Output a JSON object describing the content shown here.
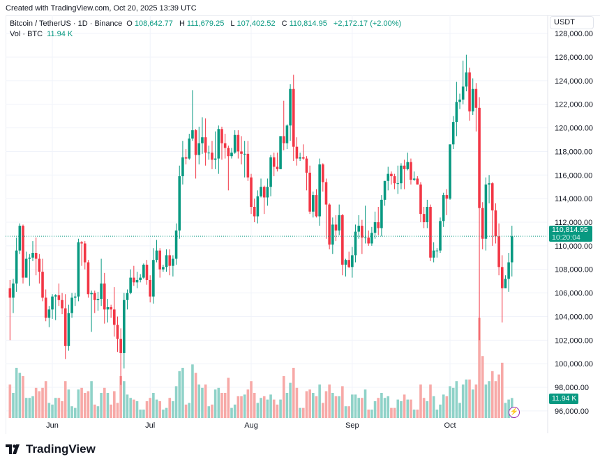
{
  "created_text": "Created with TradingView.com, Oct 20, 2025 13:39 UTC",
  "legend": {
    "symbol": "Bitcoin / TetherUS · 1D · Binance",
    "o_label": "O",
    "o": "108,642.77",
    "h_label": "H",
    "h": "111,679.25",
    "l_label": "L",
    "l": "107,402.52",
    "c_label": "C",
    "c": "110,814.95",
    "change": "+2,172.17 (+2.00%)",
    "vol_label": "Vol · BTC",
    "vol_value": "11.94 K"
  },
  "currency": "USDT",
  "last_price_label": "110,814.95",
  "countdown": "10:20:04",
  "last_volume_label": "11.94 K",
  "footer_brand": "TradingView",
  "colors": {
    "up": "#089981",
    "down": "#F23645",
    "up_vol": "#8fd2c8",
    "down_vol": "#f7a9a7",
    "grid": "#f0f3fa"
  },
  "icons": {
    "replay": "lightning-icon",
    "logo": "tradingview-logo"
  },
  "chart_data": {
    "type": "candlestick",
    "title": "Bitcoin / TetherUS · 1D · Binance",
    "ylabel": "USDT",
    "ylim": [
      95000,
      129000
    ],
    "y_ticks": [
      "96,000.00",
      "98,000.00",
      "100,000.00",
      "102,000.00",
      "104,000.00",
      "106,000.00",
      "108,000.00",
      "110,000.00",
      "112,000.00",
      "114,000.00",
      "116,000.00",
      "118,000.00",
      "120,000.00",
      "122,000.00",
      "124,000.00",
      "126,000.00",
      "128,000.00"
    ],
    "y_tick_values": [
      96000,
      98000,
      100000,
      102000,
      104000,
      106000,
      108000,
      110000,
      112000,
      114000,
      116000,
      118000,
      120000,
      122000,
      124000,
      126000,
      128000
    ],
    "x_ticks": [
      {
        "label": "Jun",
        "date": "2025-06-01"
      },
      {
        "label": "Jul",
        "date": "2025-07-01"
      },
      {
        "label": "Aug",
        "date": "2025-08-01"
      },
      {
        "label": "Sep",
        "date": "2025-09-01"
      },
      {
        "label": "Oct",
        "date": "2025-10-01"
      }
    ],
    "grid": true,
    "last_price": 110814.95,
    "columns": [
      "date",
      "open_k",
      "high_k",
      "low_k",
      "close_k",
      "volume_k_btc"
    ],
    "candles": [
      [
        "2025-05-19",
        106.4,
        107.1,
        102.0,
        105.6,
        20
      ],
      [
        "2025-05-20",
        105.6,
        107.2,
        104.3,
        106.8,
        15
      ],
      [
        "2025-05-21",
        106.8,
        110.7,
        106.1,
        109.6,
        30
      ],
      [
        "2025-05-22",
        109.6,
        111.9,
        109.3,
        111.7,
        27
      ],
      [
        "2025-05-23",
        111.7,
        111.8,
        106.8,
        107.3,
        25
      ],
      [
        "2025-05-24",
        107.3,
        109.5,
        107.3,
        108.9,
        12
      ],
      [
        "2025-05-25",
        108.9,
        109.3,
        106.6,
        109.0,
        12
      ],
      [
        "2025-05-26",
        109.0,
        110.4,
        108.7,
        109.4,
        13
      ],
      [
        "2025-05-27",
        109.4,
        110.7,
        107.5,
        108.9,
        18
      ],
      [
        "2025-05-28",
        108.9,
        109.3,
        106.8,
        107.8,
        16
      ],
      [
        "2025-05-29",
        107.8,
        108.9,
        105.3,
        105.6,
        18
      ],
      [
        "2025-05-30",
        105.6,
        106.3,
        103.6,
        103.9,
        22
      ],
      [
        "2025-05-31",
        103.9,
        104.9,
        103.1,
        104.6,
        9
      ],
      [
        "2025-06-01",
        104.6,
        105.9,
        103.8,
        105.7,
        8
      ],
      [
        "2025-06-02",
        105.7,
        105.9,
        103.7,
        105.8,
        12
      ],
      [
        "2025-06-03",
        105.8,
        106.8,
        104.9,
        105.4,
        12
      ],
      [
        "2025-06-04",
        105.4,
        106.0,
        104.2,
        104.7,
        10
      ],
      [
        "2025-06-05",
        104.7,
        105.9,
        100.4,
        101.5,
        22
      ],
      [
        "2025-06-06",
        101.5,
        105.0,
        101.1,
        104.3,
        17
      ],
      [
        "2025-06-07",
        104.3,
        106.0,
        103.9,
        105.6,
        7
      ],
      [
        "2025-06-08",
        105.6,
        106.0,
        104.9,
        105.7,
        6
      ],
      [
        "2025-06-09",
        105.7,
        110.6,
        105.3,
        110.3,
        17
      ],
      [
        "2025-06-10",
        110.3,
        110.4,
        108.3,
        110.2,
        18
      ],
      [
        "2025-06-11",
        110.2,
        110.4,
        108.0,
        108.6,
        15
      ],
      [
        "2025-06-12",
        108.6,
        108.8,
        105.6,
        105.9,
        16
      ],
      [
        "2025-06-13",
        105.9,
        106.2,
        102.7,
        106.0,
        22
      ],
      [
        "2025-06-14",
        106.0,
        106.2,
        104.3,
        105.4,
        8
      ],
      [
        "2025-06-15",
        105.4,
        106.1,
        104.5,
        105.5,
        7
      ],
      [
        "2025-06-16",
        105.5,
        108.9,
        104.9,
        106.8,
        15
      ],
      [
        "2025-06-17",
        106.8,
        107.7,
        103.4,
        104.6,
        18
      ],
      [
        "2025-06-18",
        104.6,
        105.5,
        103.5,
        104.8,
        15
      ],
      [
        "2025-06-19",
        104.8,
        105.0,
        103.9,
        104.6,
        8
      ],
      [
        "2025-06-20",
        104.6,
        106.5,
        102.3,
        103.3,
        16
      ],
      [
        "2025-06-21",
        103.3,
        104.0,
        101.0,
        102.1,
        9
      ],
      [
        "2025-06-22",
        102.1,
        103.0,
        98.2,
        100.9,
        25
      ],
      [
        "2025-06-23",
        100.9,
        106.0,
        99.6,
        105.4,
        22
      ],
      [
        "2025-06-24",
        105.4,
        106.3,
        104.6,
        106.0,
        14
      ],
      [
        "2025-06-25",
        106.0,
        108.0,
        105.9,
        107.3,
        12
      ],
      [
        "2025-06-26",
        107.3,
        108.3,
        106.6,
        106.9,
        11
      ],
      [
        "2025-06-27",
        106.9,
        107.8,
        106.4,
        107.1,
        10
      ],
      [
        "2025-06-28",
        107.1,
        107.6,
        106.9,
        107.3,
        5
      ],
      [
        "2025-06-29",
        107.3,
        108.5,
        107.2,
        108.4,
        5
      ],
      [
        "2025-06-30",
        108.4,
        108.8,
        106.7,
        107.1,
        10
      ],
      [
        "2025-07-01",
        107.1,
        107.5,
        105.2,
        105.7,
        12
      ],
      [
        "2025-07-02",
        105.7,
        109.8,
        105.1,
        108.8,
        15
      ],
      [
        "2025-07-03",
        108.8,
        110.5,
        108.6,
        109.6,
        11
      ],
      [
        "2025-07-04",
        109.6,
        109.8,
        107.3,
        108.0,
        10
      ],
      [
        "2025-07-05",
        108.0,
        108.4,
        107.8,
        108.2,
        5
      ],
      [
        "2025-07-06",
        108.2,
        109.7,
        107.8,
        109.2,
        6
      ],
      [
        "2025-07-07",
        109.2,
        109.7,
        107.5,
        108.3,
        12
      ],
      [
        "2025-07-08",
        108.3,
        109.2,
        107.4,
        108.9,
        10
      ],
      [
        "2025-07-09",
        108.9,
        111.9,
        108.4,
        111.3,
        19
      ],
      [
        "2025-07-10",
        111.3,
        116.8,
        110.6,
        115.9,
        28
      ],
      [
        "2025-07-11",
        115.9,
        118.9,
        115.2,
        117.5,
        30
      ],
      [
        "2025-07-12",
        117.5,
        118.2,
        116.9,
        117.4,
        8
      ],
      [
        "2025-07-13",
        117.4,
        119.5,
        117.3,
        119.1,
        9
      ],
      [
        "2025-07-14",
        119.1,
        123.2,
        118.9,
        119.8,
        32
      ],
      [
        "2025-07-15",
        119.8,
        119.9,
        115.7,
        117.7,
        27
      ],
      [
        "2025-07-16",
        117.7,
        120.1,
        116.9,
        118.7,
        20
      ],
      [
        "2025-07-17",
        118.7,
        120.9,
        117.8,
        119.2,
        18
      ],
      [
        "2025-07-18",
        119.2,
        120.8,
        116.8,
        117.9,
        20
      ],
      [
        "2025-07-19",
        117.9,
        118.5,
        117.3,
        117.9,
        7
      ],
      [
        "2025-07-20",
        117.9,
        118.9,
        116.5,
        117.3,
        8
      ],
      [
        "2025-07-21",
        117.3,
        119.7,
        116.5,
        117.4,
        17
      ],
      [
        "2025-07-22",
        117.4,
        120.2,
        116.1,
        119.9,
        18
      ],
      [
        "2025-07-23",
        119.9,
        120.1,
        117.3,
        118.7,
        15
      ],
      [
        "2025-07-24",
        118.7,
        119.5,
        117.4,
        118.3,
        15
      ],
      [
        "2025-07-25",
        118.3,
        118.5,
        114.7,
        117.6,
        24
      ],
      [
        "2025-07-26",
        117.6,
        118.3,
        117.4,
        117.9,
        6
      ],
      [
        "2025-07-27",
        117.9,
        119.8,
        117.8,
        119.4,
        8
      ],
      [
        "2025-07-28",
        119.4,
        119.8,
        117.4,
        118.0,
        13
      ],
      [
        "2025-07-29",
        118.0,
        119.3,
        116.9,
        117.8,
        13
      ],
      [
        "2025-07-30",
        117.8,
        118.9,
        115.8,
        117.8,
        14
      ],
      [
        "2025-07-31",
        117.8,
        118.9,
        115.5,
        115.8,
        17
      ],
      [
        "2025-08-01",
        115.8,
        116.1,
        112.7,
        113.3,
        22
      ],
      [
        "2025-08-02",
        113.3,
        114.0,
        112.0,
        112.5,
        15
      ],
      [
        "2025-08-03",
        112.5,
        114.7,
        111.9,
        114.2,
        9
      ],
      [
        "2025-08-04",
        114.2,
        115.7,
        114.1,
        115.0,
        12
      ],
      [
        "2025-08-05",
        115.0,
        115.1,
        112.7,
        114.1,
        13
      ],
      [
        "2025-08-06",
        114.1,
        115.7,
        113.4,
        115.0,
        11
      ],
      [
        "2025-08-07",
        115.0,
        117.7,
        114.2,
        117.5,
        14
      ],
      [
        "2025-08-08",
        117.5,
        117.9,
        115.9,
        116.7,
        11
      ],
      [
        "2025-08-09",
        116.7,
        117.9,
        116.3,
        116.5,
        8
      ],
      [
        "2025-08-10",
        116.5,
        119.3,
        116.5,
        119.3,
        11
      ],
      [
        "2025-08-11",
        119.3,
        122.3,
        118.1,
        118.7,
        25
      ],
      [
        "2025-08-12",
        118.7,
        120.3,
        118.2,
        120.2,
        15
      ],
      [
        "2025-08-13",
        120.2,
        123.7,
        118.9,
        123.3,
        21
      ],
      [
        "2025-08-14",
        123.3,
        124.5,
        117.2,
        118.4,
        30
      ],
      [
        "2025-08-15",
        118.4,
        119.2,
        116.8,
        117.4,
        18
      ],
      [
        "2025-08-16",
        117.4,
        117.9,
        117.2,
        117.5,
        6
      ],
      [
        "2025-08-17",
        117.5,
        118.6,
        117.3,
        117.4,
        6
      ],
      [
        "2025-08-18",
        117.4,
        117.6,
        114.7,
        116.2,
        16
      ],
      [
        "2025-08-19",
        116.2,
        116.8,
        112.7,
        112.9,
        17
      ],
      [
        "2025-08-20",
        112.9,
        114.6,
        112.4,
        114.3,
        15
      ],
      [
        "2025-08-21",
        114.3,
        114.8,
        112.4,
        112.5,
        13
      ],
      [
        "2025-08-22",
        112.5,
        117.4,
        111.7,
        116.9,
        20
      ],
      [
        "2025-08-23",
        116.9,
        117.0,
        114.6,
        115.4,
        9
      ],
      [
        "2025-08-24",
        115.4,
        115.7,
        110.6,
        113.5,
        16
      ],
      [
        "2025-08-25",
        113.5,
        113.6,
        109.7,
        110.1,
        20
      ],
      [
        "2025-08-26",
        110.1,
        112.4,
        109.3,
        111.8,
        15
      ],
      [
        "2025-08-27",
        111.8,
        112.6,
        110.4,
        111.3,
        13
      ],
      [
        "2025-08-28",
        111.3,
        113.5,
        110.9,
        112.6,
        13
      ],
      [
        "2025-08-29",
        112.6,
        112.7,
        107.5,
        108.4,
        19
      ],
      [
        "2025-08-30",
        108.4,
        108.9,
        107.4,
        108.8,
        7
      ],
      [
        "2025-08-31",
        108.8,
        109.5,
        108.1,
        108.2,
        7
      ],
      [
        "2025-09-01",
        108.2,
        109.9,
        107.3,
        109.2,
        14
      ],
      [
        "2025-09-02",
        109.2,
        111.8,
        108.6,
        111.2,
        14
      ],
      [
        "2025-09-03",
        111.2,
        112.6,
        110.6,
        111.7,
        12
      ],
      [
        "2025-09-04",
        111.7,
        112.2,
        109.3,
        110.7,
        12
      ],
      [
        "2025-09-05",
        110.7,
        113.4,
        110.2,
        110.7,
        17
      ],
      [
        "2025-09-06",
        110.7,
        111.3,
        110.0,
        110.2,
        5
      ],
      [
        "2025-09-07",
        110.2,
        111.6,
        110.0,
        111.1,
        5
      ],
      [
        "2025-09-08",
        111.1,
        112.9,
        110.6,
        112.0,
        10
      ],
      [
        "2025-09-09",
        112.0,
        113.3,
        110.9,
        111.5,
        12
      ],
      [
        "2025-09-10",
        111.5,
        114.3,
        110.8,
        113.9,
        15
      ],
      [
        "2025-09-11",
        113.9,
        115.5,
        113.4,
        115.5,
        12
      ],
      [
        "2025-09-12",
        115.5,
        116.7,
        114.7,
        116.1,
        13
      ],
      [
        "2025-09-13",
        116.1,
        116.3,
        115.2,
        115.9,
        6
      ],
      [
        "2025-09-14",
        115.9,
        116.1,
        114.8,
        115.3,
        6
      ],
      [
        "2025-09-15",
        115.3,
        116.8,
        114.4,
        115.3,
        11
      ],
      [
        "2025-09-16",
        115.3,
        117.0,
        114.8,
        116.8,
        10
      ],
      [
        "2025-09-17",
        116.8,
        117.3,
        114.8,
        116.5,
        14
      ],
      [
        "2025-09-18",
        116.5,
        117.9,
        116.4,
        117.1,
        11
      ],
      [
        "2025-09-19",
        117.1,
        117.4,
        115.2,
        115.6,
        11
      ],
      [
        "2025-09-20",
        115.6,
        116.3,
        115.5,
        115.7,
        5
      ],
      [
        "2025-09-21",
        115.7,
        115.9,
        115.2,
        115.2,
        5
      ],
      [
        "2025-09-22",
        115.2,
        115.4,
        112.0,
        112.7,
        20
      ],
      [
        "2025-09-23",
        112.7,
        113.3,
        111.5,
        112.0,
        12
      ],
      [
        "2025-09-24",
        112.0,
        113.9,
        111.5,
        113.3,
        10
      ],
      [
        "2025-09-25",
        113.3,
        113.5,
        108.7,
        109.0,
        20
      ],
      [
        "2025-09-26",
        109.0,
        110.3,
        108.6,
        109.6,
        13
      ],
      [
        "2025-09-27",
        109.6,
        109.8,
        109.0,
        109.6,
        5
      ],
      [
        "2025-09-28",
        109.6,
        112.4,
        109.4,
        112.1,
        8
      ],
      [
        "2025-09-29",
        112.1,
        114.5,
        111.6,
        114.3,
        14
      ],
      [
        "2025-09-30",
        114.3,
        114.8,
        112.6,
        114.0,
        13
      ],
      [
        "2025-10-01",
        114.0,
        118.6,
        113.9,
        118.6,
        19
      ],
      [
        "2025-10-02",
        118.6,
        121.0,
        118.2,
        120.5,
        18
      ],
      [
        "2025-10-03",
        120.5,
        123.9,
        119.3,
        122.2,
        22
      ],
      [
        "2025-10-04",
        122.2,
        122.9,
        121.6,
        122.4,
        9
      ],
      [
        "2025-10-05",
        122.4,
        125.7,
        122.0,
        123.5,
        20
      ],
      [
        "2025-10-06",
        123.5,
        126.2,
        123.1,
        124.7,
        23
      ],
      [
        "2025-10-07",
        124.7,
        125.1,
        120.6,
        121.4,
        23
      ],
      [
        "2025-10-08",
        121.4,
        124.2,
        121.1,
        123.3,
        17
      ],
      [
        "2025-10-09",
        123.3,
        123.8,
        119.7,
        121.7,
        20
      ],
      [
        "2025-10-10",
        121.7,
        122.6,
        102.0,
        113.2,
        60
      ],
      [
        "2025-10-11",
        113.2,
        113.7,
        109.7,
        110.6,
        37
      ],
      [
        "2025-10-12",
        110.6,
        115.8,
        109.6,
        115.2,
        20
      ],
      [
        "2025-10-13",
        115.2,
        116.0,
        113.6,
        115.3,
        22
      ],
      [
        "2025-10-14",
        115.3,
        115.4,
        110.0,
        113.0,
        28
      ],
      [
        "2025-10-15",
        113.0,
        113.6,
        110.2,
        110.8,
        22
      ],
      [
        "2025-10-16",
        110.8,
        111.9,
        107.5,
        108.2,
        26
      ],
      [
        "2025-10-17",
        108.2,
        109.2,
        103.5,
        106.4,
        33
      ],
      [
        "2025-10-18",
        106.4,
        107.5,
        106.4,
        107.2,
        9
      ],
      [
        "2025-10-19",
        107.2,
        109.4,
        106.1,
        108.6,
        11
      ],
      [
        "2025-10-20",
        108.6,
        111.7,
        107.4,
        110.8,
        11.94
      ]
    ]
  }
}
